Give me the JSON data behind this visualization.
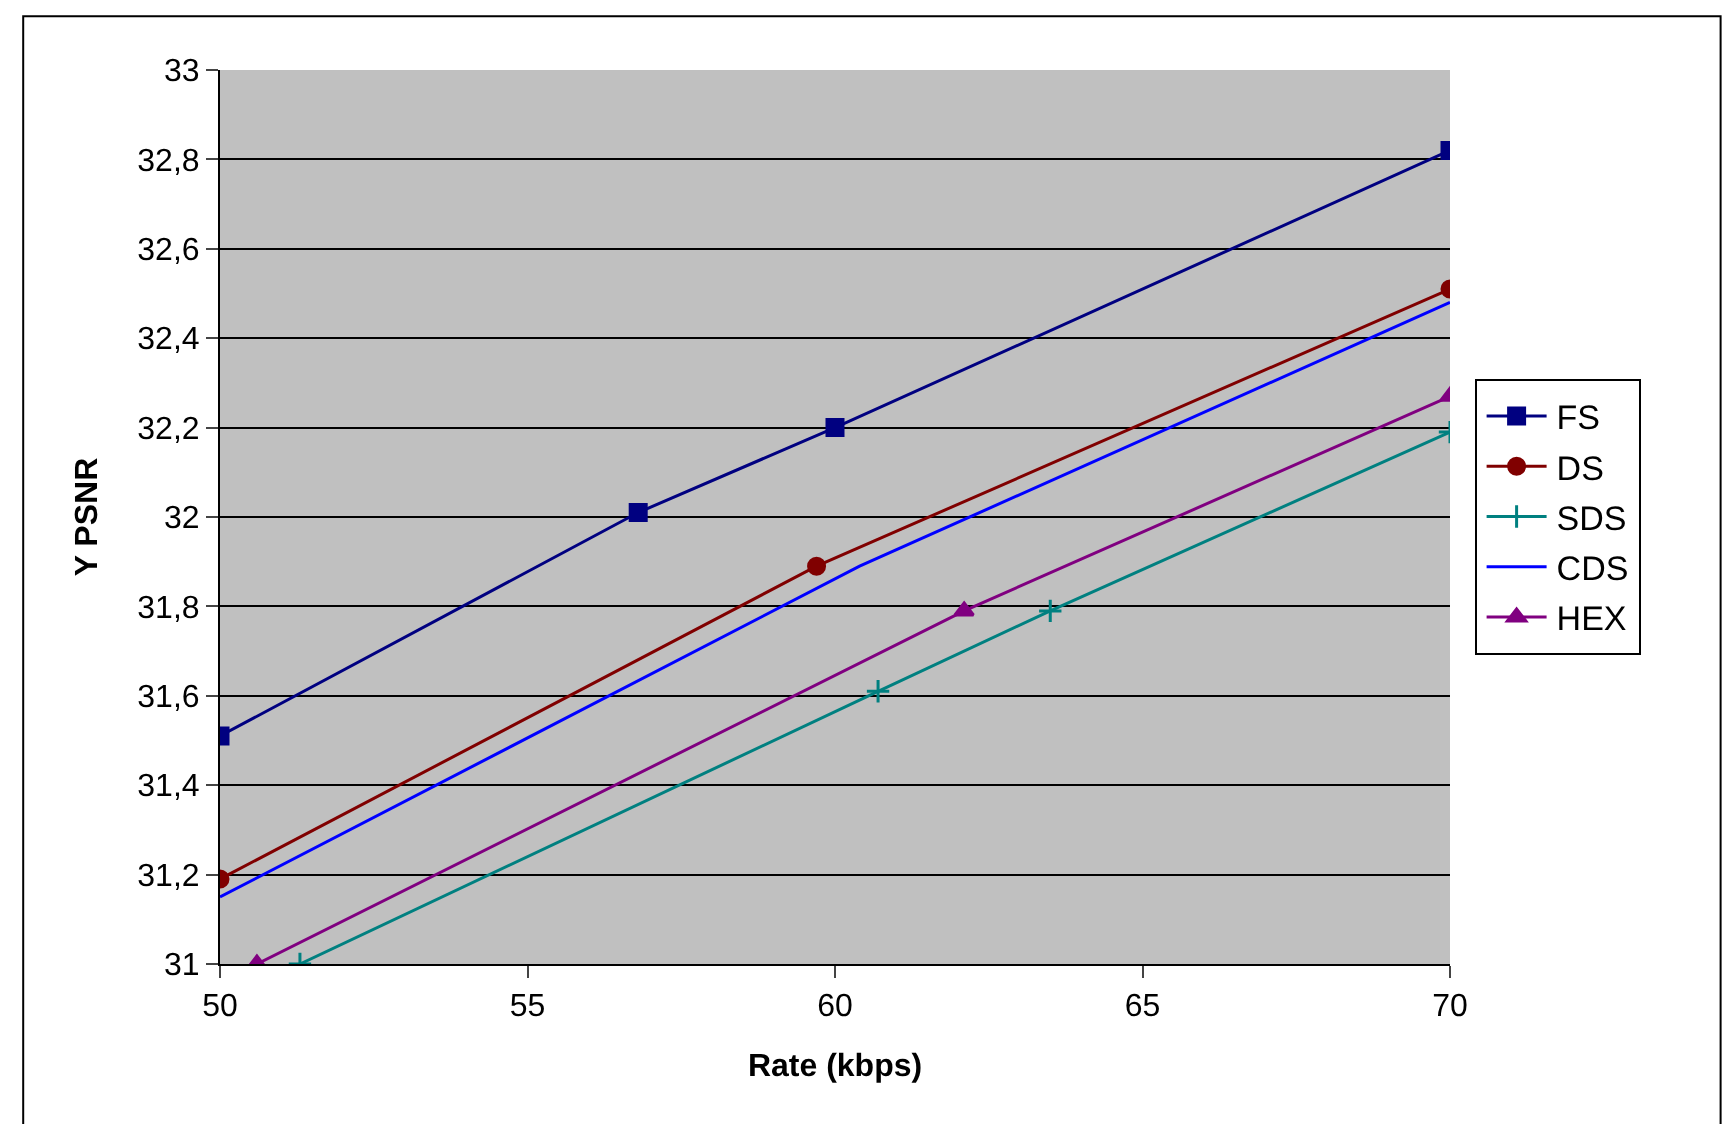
{
  "chart_data": {
    "type": "line",
    "xlabel": "Rate (kbps)",
    "ylabel": "Y PSNR",
    "xlim": [
      50,
      70
    ],
    "xticks": [
      50,
      55,
      60,
      65,
      70
    ],
    "ylim": [
      31,
      33
    ],
    "yticks": [
      31,
      {
        "value": 31.2,
        "label": "31,2"
      },
      {
        "value": 31.4,
        "label": "31,4"
      },
      {
        "value": 31.6,
        "label": "31,6"
      },
      {
        "value": 31.8,
        "label": "31,8"
      },
      32,
      {
        "value": 32.2,
        "label": "32,2"
      },
      {
        "value": 32.4,
        "label": "32,4"
      },
      {
        "value": 32.6,
        "label": "32,6"
      },
      {
        "value": 32.8,
        "label": "32,8"
      },
      33
    ],
    "grid": "y",
    "legend": "right",
    "line_style": "solid",
    "series": [
      {
        "name": "FS",
        "color": "#000080",
        "marker": "square",
        "x": [
          50,
          56.8,
          60,
          70
        ],
        "values": [
          31.51,
          32.01,
          32.2,
          32.82
        ]
      },
      {
        "name": "DS",
        "color": "#800000",
        "marker": "circle",
        "x": [
          50,
          59.7,
          70
        ],
        "values": [
          31.19,
          31.89,
          32.51
        ]
      },
      {
        "name": "SDS",
        "color": "#008080",
        "marker": "cross",
        "x": [
          51.3,
          60.7,
          63.5,
          70
        ],
        "values": [
          31.0,
          31.61,
          31.79,
          32.19
        ]
      },
      {
        "name": "CDS",
        "color": "#0000ff",
        "marker": "none",
        "x": [
          50,
          60.4,
          70
        ],
        "values": [
          31.15,
          31.89,
          32.48
        ]
      },
      {
        "name": "HEX",
        "color": "#800080",
        "marker": "triangle",
        "x": [
          50.6,
          62.1,
          70
        ],
        "values": [
          31.0,
          31.79,
          32.27
        ]
      }
    ]
  }
}
